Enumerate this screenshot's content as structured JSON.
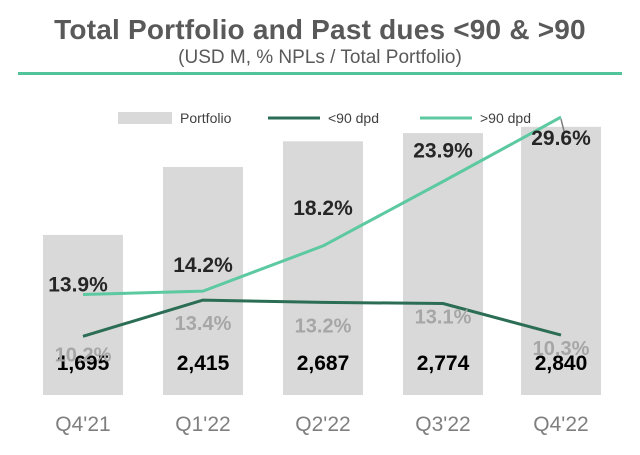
{
  "header": {
    "title": "Total Portfolio and Past dues <90 & >90",
    "subtitle": "(USD M, % NPLs / Total Portfolio)"
  },
  "chart_data": {
    "type": "bar",
    "categories": [
      "Q4'21",
      "Q1'22",
      "Q2'22",
      "Q3'22",
      "Q4'22"
    ],
    "portfolio_range": [
      0,
      3230
    ],
    "pct_range": [
      5,
      32
    ],
    "legend_position": "top",
    "series": [
      {
        "name": "Portfolio",
        "kind": "bar",
        "color": "#d9d9d9",
        "values": [
          1695,
          2415,
          2687,
          2774,
          2840
        ],
        "labels": [
          "1,695",
          "2,415",
          "2,687",
          "2,774",
          "2,840"
        ]
      },
      {
        "name": "<90 dpd",
        "kind": "line",
        "color": "#2b6e55",
        "values": [
          10.2,
          13.4,
          13.2,
          13.1,
          10.3
        ],
        "labels": [
          "10.2%",
          "13.4%",
          "13.2%",
          "13.1%",
          "10.3%"
        ]
      },
      {
        "name": ">90 dpd",
        "kind": "line",
        "color": "#5cc9a0",
        "values": [
          13.9,
          14.2,
          18.2,
          23.9,
          29.6
        ],
        "labels": [
          "13.9%",
          "14.2%",
          "18.2%",
          "23.9%",
          "29.6%"
        ]
      }
    ]
  }
}
